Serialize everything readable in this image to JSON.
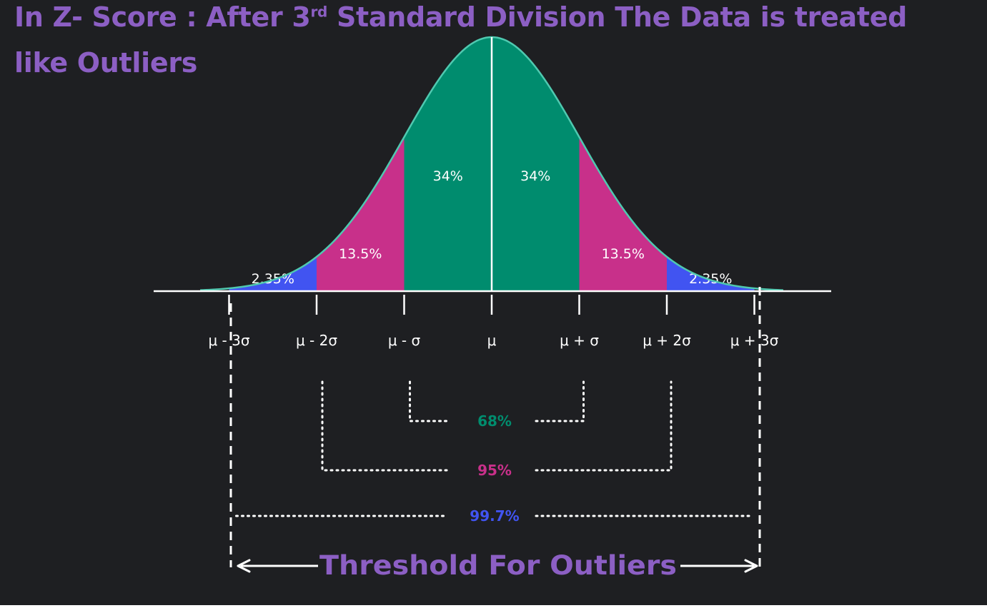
{
  "title": {
    "line1_before": "In Z- Score : After 3",
    "line1_sup": "rd",
    "line1_after": " Standard Division The Data is treated",
    "line2": "like Outliers",
    "color": "#8c5fc4"
  },
  "regions": [
    {
      "label": "2.35%",
      "from": -3,
      "to": -2,
      "color": "#4154f1"
    },
    {
      "label": "13.5%",
      "from": -2,
      "to": -1,
      "color": "#c8308a"
    },
    {
      "label": "34%",
      "from": -1,
      "to": 0,
      "color": "#008c6e"
    },
    {
      "label": "34%",
      "from": 0,
      "to": 1,
      "color": "#008c6e"
    },
    {
      "label": "13.5%",
      "from": 1,
      "to": 2,
      "color": "#c8308a"
    },
    {
      "label": "2.35%",
      "from": 2,
      "to": 3,
      "color": "#4154f1"
    }
  ],
  "curve_color": "#4fc9b0",
  "ticks": [
    {
      "sigma": -3,
      "label": "μ - 3σ"
    },
    {
      "sigma": -2,
      "label": "μ - 2σ"
    },
    {
      "sigma": -1,
      "label": "μ - σ"
    },
    {
      "sigma": 0,
      "label": "μ"
    },
    {
      "sigma": 1,
      "label": "μ + σ"
    },
    {
      "sigma": 2,
      "label": "μ + 2σ"
    },
    {
      "sigma": 3,
      "label": "μ + 3σ"
    }
  ],
  "intervals": [
    {
      "label": "68%",
      "sigma": 1,
      "color": "#008c6e"
    },
    {
      "label": "95%",
      "sigma": 2,
      "color": "#c8308a"
    },
    {
      "label": "99.7%",
      "sigma": 3,
      "color": "#4154f1"
    }
  ],
  "threshold": {
    "label": "Threshold For Outliers",
    "sigma": 3
  }
}
